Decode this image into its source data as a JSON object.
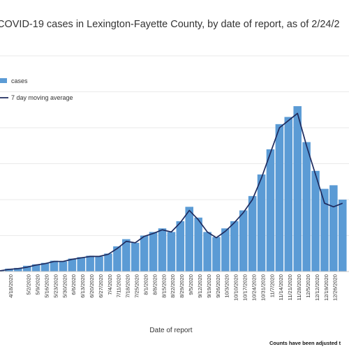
{
  "colors": {
    "bars": "#5b9bd5",
    "line": "#1f2b5e",
    "grid": "#e3e3e3",
    "axis": "#c8c8c8"
  },
  "chart_data": {
    "type": "bar",
    "title": "COVID-19 cases in Lexington-Fayette County, by date of report, as of 2/24/2",
    "xlabel": "Date of report",
    "ylabel": "",
    "note": "Counts have been adjusted t",
    "grid": true,
    "legend_position": "top-left",
    "ylim": [
      0,
      300
    ],
    "x_tick_labels": [
      "4/18/2020",
      "5/2/2020",
      "5/9/2020",
      "5/16/2020",
      "5/23/2020",
      "5/30/2020",
      "6/6/2020",
      "6/13/2020",
      "6/20/2020",
      "6/27/2020",
      "7/4/2020",
      "7/11/2020",
      "7/18/2020",
      "7/25/2020",
      "8/1/2020",
      "8/8/2020",
      "8/15/2020",
      "8/22/2020",
      "8/29/2020",
      "9/5/2020",
      "9/12/2020",
      "9/19/2020",
      "9/26/2020",
      "10/3/2020",
      "10/10/2020",
      "10/17/2020",
      "10/24/2020",
      "10/31/2020",
      "11/7/2020",
      "11/14/2020",
      "11/21/2020",
      "11/28/2020",
      "12/5/2020",
      "12/12/2020",
      "12/19/2020",
      "12/26/2020"
    ],
    "series": [
      {
        "name": "cases",
        "type": "bar",
        "x": [
          "4/10/2020",
          "4/17/2020",
          "4/24/2020",
          "5/1/2020",
          "5/8/2020",
          "5/15/2020",
          "5/22/2020",
          "5/29/2020",
          "6/5/2020",
          "6/12/2020",
          "6/19/2020",
          "6/26/2020",
          "7/3/2020",
          "7/10/2020",
          "7/17/2020",
          "7/24/2020",
          "7/31/2020",
          "8/7/2020",
          "8/14/2020",
          "8/21/2020",
          "8/28/2020",
          "9/4/2020",
          "9/11/2020",
          "9/18/2020",
          "9/25/2020",
          "10/2/2020",
          "10/9/2020",
          "10/16/2020",
          "10/23/2020",
          "10/30/2020",
          "11/6/2020",
          "11/13/2020",
          "11/20/2020",
          "11/27/2020",
          "12/4/2020",
          "12/11/2020",
          "12/18/2020",
          "12/25/2020",
          "1/1/2021"
        ],
        "values": [
          2,
          4,
          5,
          8,
          10,
          12,
          15,
          14,
          18,
          20,
          22,
          21,
          25,
          35,
          45,
          40,
          50,
          55,
          60,
          55,
          70,
          90,
          75,
          55,
          48,
          60,
          70,
          85,
          105,
          135,
          170,
          205,
          215,
          230,
          180,
          140,
          115,
          120,
          100
        ]
      },
      {
        "name": "7 day moving average",
        "type": "line",
        "x": [
          "4/10/2020",
          "4/17/2020",
          "4/24/2020",
          "5/1/2020",
          "5/8/2020",
          "5/15/2020",
          "5/22/2020",
          "5/29/2020",
          "6/5/2020",
          "6/12/2020",
          "6/19/2020",
          "6/26/2020",
          "7/3/2020",
          "7/10/2020",
          "7/17/2020",
          "7/24/2020",
          "7/31/2020",
          "8/7/2020",
          "8/14/2020",
          "8/21/2020",
          "8/28/2020",
          "9/4/2020",
          "9/11/2020",
          "9/18/2020",
          "9/25/2020",
          "10/2/2020",
          "10/9/2020",
          "10/16/2020",
          "10/23/2020",
          "10/30/2020",
          "11/6/2020",
          "11/13/2020",
          "11/20/2020",
          "11/27/2020",
          "12/4/2020",
          "12/11/2020",
          "12/18/2020",
          "12/25/2020",
          "1/1/2021"
        ],
        "values": [
          1,
          3,
          4,
          6,
          9,
          11,
          14,
          14,
          17,
          19,
          21,
          21,
          24,
          32,
          42,
          40,
          49,
          53,
          58,
          55,
          68,
          85,
          72,
          55,
          47,
          56,
          68,
          82,
          100,
          130,
          165,
          200,
          210,
          220,
          175,
          135,
          95,
          90,
          95
        ]
      }
    ]
  }
}
